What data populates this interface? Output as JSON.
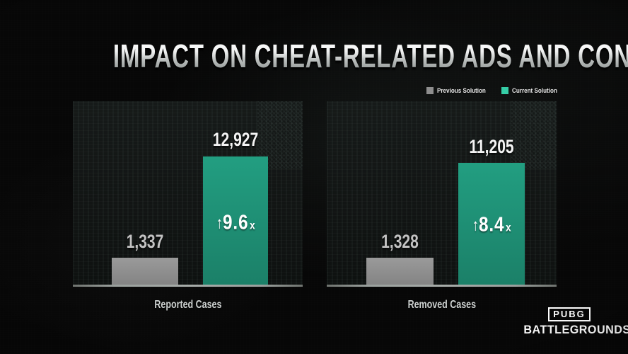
{
  "title": "IMPACT ON CHEAT-RELATED ADS AND CONTENT",
  "legend": {
    "previous_label": "Previous Solution",
    "current_label": "Current Solution"
  },
  "charts": [
    {
      "label": "Reported Cases",
      "previous_value": "1,337",
      "current_value": "12,927",
      "arrow": "↑",
      "multiplier": "9.6",
      "multiplier_suffix": "x"
    },
    {
      "label": "Removed Cases",
      "previous_value": "1,328",
      "current_value": "11,205",
      "arrow": "↑",
      "multiplier": "8.4",
      "multiplier_suffix": "x"
    }
  ],
  "footer": {
    "logo_top": "PUBG",
    "logo_bottom": "BATTLEGROUNDS"
  },
  "colors": {
    "background": "#070707",
    "panel": "#131615",
    "bar_previous": "#8e8e8e",
    "bar_current": "#1e9478",
    "legend_previous_swatch": "#8e8e8e",
    "legend_current_swatch": "#35cda6",
    "value_previous_text": "#c2c2c2",
    "value_current_text": "#f4f4f4",
    "baseline": "#9aa09d"
  },
  "chart_data": [
    {
      "type": "bar",
      "title": "Reported Cases",
      "categories": [
        "Previous Solution",
        "Current Solution"
      ],
      "values": [
        1337,
        12927
      ],
      "annotation": "↑9.6x",
      "series_colors": [
        "#8e8e8e",
        "#1e9478"
      ],
      "xlabel": "",
      "ylabel": "",
      "grid": false,
      "legend_position": "top-right"
    },
    {
      "type": "bar",
      "title": "Removed Cases",
      "categories": [
        "Previous Solution",
        "Current Solution"
      ],
      "values": [
        1328,
        11205
      ],
      "annotation": "↑8.4x",
      "series_colors": [
        "#8e8e8e",
        "#1e9478"
      ],
      "xlabel": "",
      "ylabel": "",
      "grid": false,
      "legend_position": "top-right"
    }
  ]
}
